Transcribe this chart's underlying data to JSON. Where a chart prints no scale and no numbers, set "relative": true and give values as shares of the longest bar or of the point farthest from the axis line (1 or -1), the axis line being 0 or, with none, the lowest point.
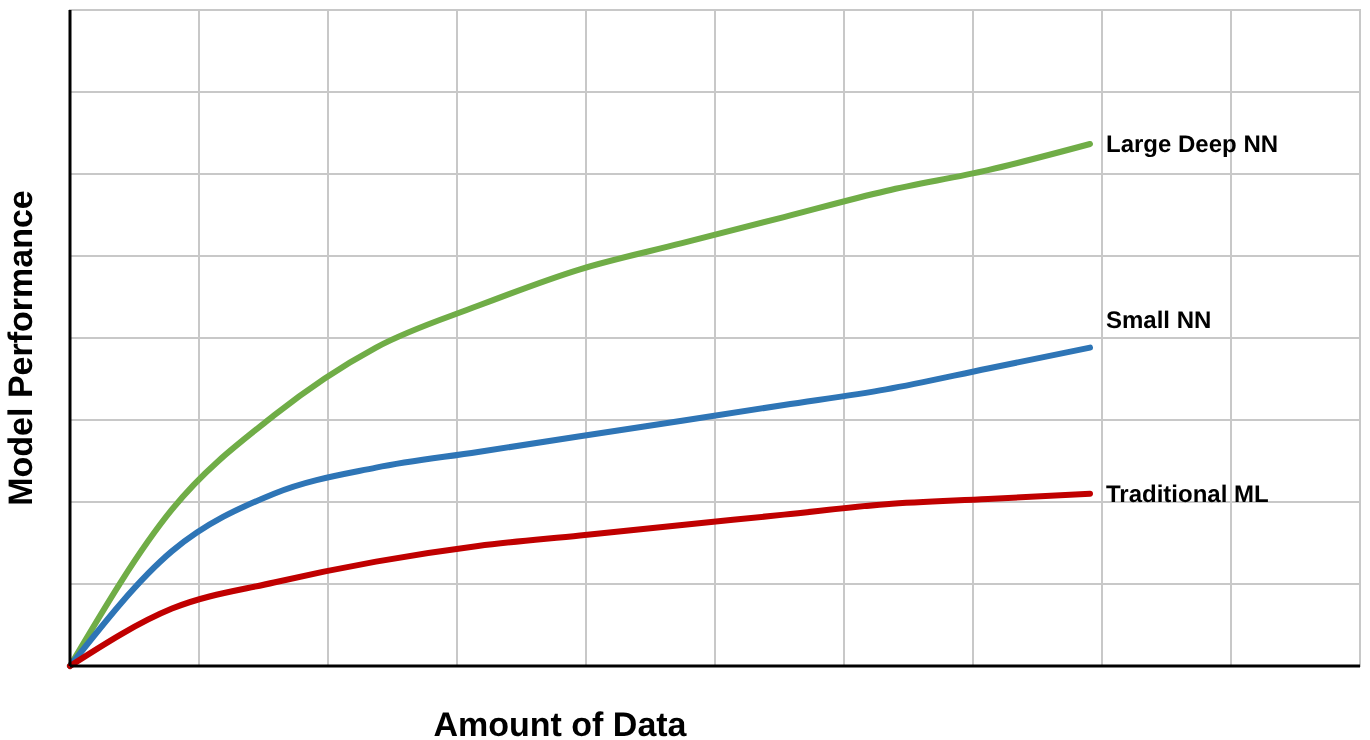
{
  "chart_data": {
    "type": "line",
    "xlabel": "Amount of Data",
    "ylabel": "Model Performance",
    "relative": true,
    "grid": true,
    "marker": "none",
    "line_style": "solid",
    "categories": [
      null,
      null,
      null,
      null,
      null,
      null,
      null,
      null,
      null,
      null,
      null
    ],
    "series": [
      {
        "name": "Large Deep NN",
        "color": "#70ad47",
        "values": [
          0,
          0.3,
          0.48,
          0.61,
          0.69,
          0.76,
          0.81,
          0.86,
          0.91,
          0.95,
          1
        ]
      },
      {
        "name": "Small NN",
        "color": "#2e75b6",
        "values": [
          0,
          0.22,
          0.33,
          0.38,
          0.41,
          0.44,
          0.47,
          0.5,
          0.53,
          0.57,
          0.61
        ]
      },
      {
        "name": "Traditional ML",
        "color": "#c00000",
        "values": [
          0,
          0.11,
          0.16,
          0.2,
          0.23,
          0.25,
          0.27,
          0.29,
          0.31,
          0.32,
          0.33
        ]
      }
    ]
  }
}
